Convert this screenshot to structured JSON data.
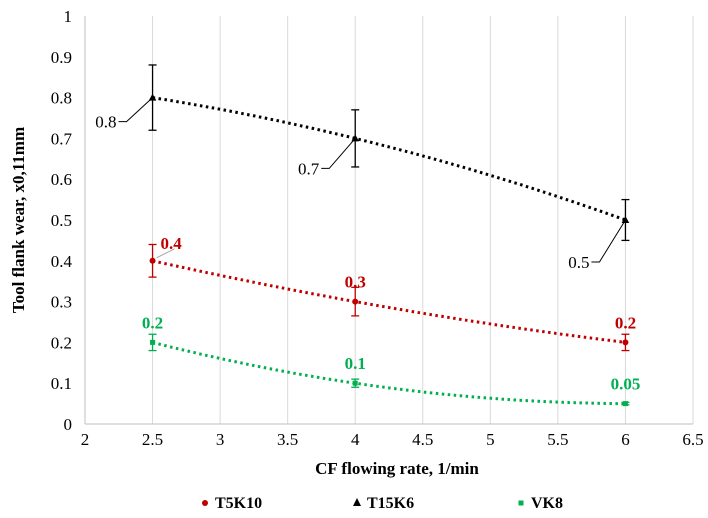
{
  "chart_data": {
    "type": "scatter",
    "title": "",
    "xlabel": "CF flowing rate, 1/min",
    "ylabel": "Tool flank wear, x0,11mm",
    "xlim": [
      2,
      6.5
    ],
    "ylim": [
      0,
      1
    ],
    "x_ticks": [
      "2",
      "2.5",
      "3",
      "3.5",
      "4",
      "4.5",
      "5",
      "5.5",
      "6",
      "6.5"
    ],
    "y_ticks": [
      "0",
      "0.1",
      "0.2",
      "0.3",
      "0.4",
      "0.5",
      "0.6",
      "0.7",
      "0.8",
      "0.9",
      "1"
    ],
    "grid": "vertical",
    "legend_position": "bottom",
    "series": [
      {
        "name": "T5K10",
        "color": "#c00000",
        "marker": "circle",
        "x": [
          2.5,
          4,
          6
        ],
        "y": [
          0.4,
          0.3,
          0.2
        ],
        "error": [
          0.04,
          0.035,
          0.02
        ],
        "labels": [
          "0.4",
          "0.3",
          "0.2"
        ],
        "trendline": "dotted"
      },
      {
        "name": "T15K6",
        "color": "#000000",
        "marker": "triangle",
        "x": [
          2.5,
          4,
          6
        ],
        "y": [
          0.8,
          0.7,
          0.5
        ],
        "error": [
          0.08,
          0.07,
          0.05
        ],
        "labels": [
          "0.8",
          "0.7",
          "0.5"
        ],
        "trendline": "dotted"
      },
      {
        "name": "VK8",
        "color": "#00b050",
        "marker": "square",
        "x": [
          2.5,
          4,
          6
        ],
        "y": [
          0.2,
          0.1,
          0.05
        ],
        "error": [
          0.02,
          0.01,
          0.003
        ],
        "labels": [
          "0.2",
          "0.1",
          "0.05"
        ],
        "trendline": "dotted"
      }
    ]
  }
}
